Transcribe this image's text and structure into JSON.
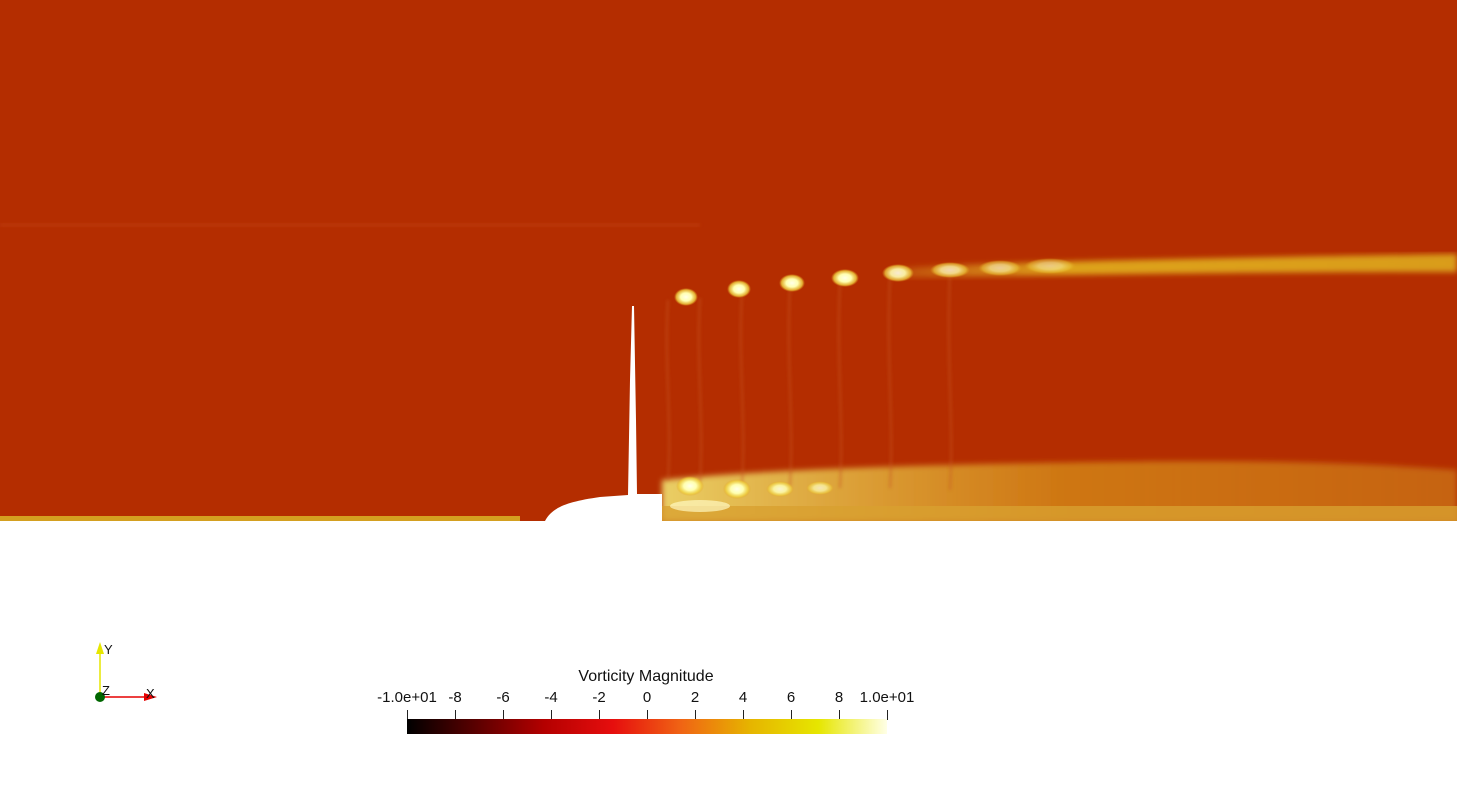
{
  "scalar_bar": {
    "title": "Vorticity  Magnitude",
    "ticks": [
      {
        "label": "-1.0e+01",
        "value": -10
      },
      {
        "label": "-8",
        "value": -8
      },
      {
        "label": "-6",
        "value": -6
      },
      {
        "label": "-4",
        "value": -4
      },
      {
        "label": "-2",
        "value": -2
      },
      {
        "label": "0",
        "value": 0
      },
      {
        "label": "2",
        "value": 2
      },
      {
        "label": "4",
        "value": 4
      },
      {
        "label": "6",
        "value": 6
      },
      {
        "label": "8",
        "value": 8
      },
      {
        "label": "1.0e+01",
        "value": 10
      }
    ],
    "range": [
      -10,
      10
    ],
    "colormap": [
      "#000000",
      "#5a0000",
      "#b40000",
      "#e60e0e",
      "#f06414",
      "#e6b400",
      "#e6e600",
      "#ffffe6"
    ]
  },
  "axes": {
    "x_label": "X",
    "y_label": "Y",
    "z_label": "Z",
    "x_color": "#e60000",
    "y_color": "#e6e600",
    "z_color": "#006600"
  },
  "field": {
    "background_color": "#b42d00"
  }
}
